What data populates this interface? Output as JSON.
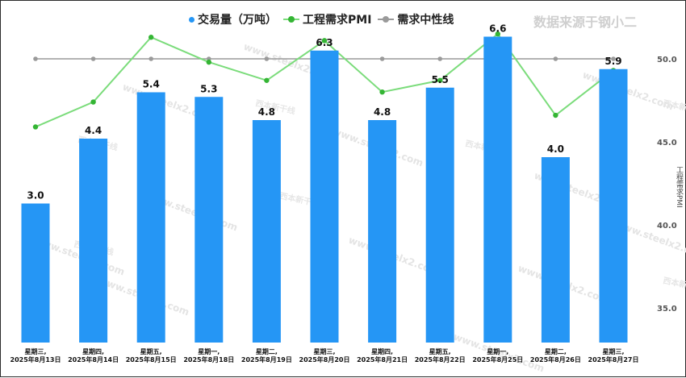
{
  "chart_data": {
    "type": "bar+line",
    "categories": [
      [
        "星期三,",
        "2025年8月13日"
      ],
      [
        "星期四,",
        "2025年8月14日"
      ],
      [
        "星期五,",
        "2025年8月15日"
      ],
      [
        "星期一,",
        "2025年8月18日"
      ],
      [
        "星期二,",
        "2025年8月19日"
      ],
      [
        "星期三,",
        "2025年8月20日"
      ],
      [
        "星期四,",
        "2025年8月21日"
      ],
      [
        "星期五,",
        "2025年8月22日"
      ],
      [
        "星期一,",
        "2025年8月25日"
      ],
      [
        "星期二,",
        "2025年8月26日"
      ],
      [
        "星期三,",
        "2025年8月27日"
      ]
    ],
    "series": [
      {
        "name": "交易量（万吨）",
        "type": "bar",
        "color": "#2596f5",
        "values": [
          3.0,
          4.4,
          5.4,
          5.3,
          4.8,
          6.3,
          4.8,
          5.5,
          6.6,
          4.0,
          5.9
        ],
        "labels": [
          "3.0",
          "4.4",
          "5.4",
          "5.3",
          "4.8",
          "6.3",
          "4.8",
          "5.5",
          "6.6",
          "4.0",
          "5.9"
        ]
      },
      {
        "name": "工程需求PMI",
        "type": "line",
        "color": "#7bdc7b",
        "dot_color": "#34b534",
        "values": [
          45.9,
          47.4,
          51.3,
          49.8,
          48.7,
          51.1,
          48.0,
          48.7,
          51.5,
          46.6,
          49.3
        ]
      },
      {
        "name": "需求中性线",
        "type": "line",
        "color": "#9a9a9a",
        "values": [
          50.0,
          50.0,
          50.0,
          50.0,
          50.0,
          50.0,
          50.0,
          50.0,
          50.0,
          50.0,
          50.0
        ]
      }
    ],
    "right_axis": {
      "ticks": [
        "50.0",
        "45.0",
        "40.0",
        "35.0"
      ],
      "tick_values": [
        50,
        45,
        40,
        35
      ],
      "ylim": [
        32.5,
        52.5
      ],
      "label": "工程需求PMI"
    },
    "bar_axis_max": 8.0,
    "legend_position": "top"
  },
  "legend": {
    "volume": "交易量（万吨）",
    "pmi": "工程需求PMI",
    "neutral": "需求中性线"
  },
  "source_note": "数据来源于钢小二",
  "watermark_text": "www.steelx2.com",
  "watermark_logo_text": "西本新干线"
}
